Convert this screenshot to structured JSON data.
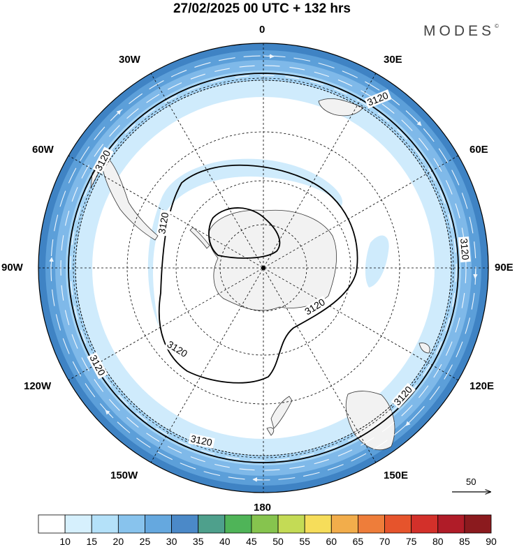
{
  "title": "27/02/2025  00 UTC  + 132 hrs",
  "brand": "MODES",
  "brand_mark": "©",
  "map": {
    "projection": "polar-stereographic-south",
    "center_point": "south-pole",
    "longitude_labels": {
      "0": "0",
      "30E": "30E",
      "60E": "60E",
      "90E": "90E",
      "120E": "120E",
      "150E": "150E",
      "180": "180",
      "150W": "150W",
      "120W": "120W",
      "90W": "90W",
      "60W": "60W",
      "30W": "30W"
    },
    "contour_label": "3120",
    "contour_level": 3120,
    "vector_reference_label": "50",
    "vector_reference_value": 50,
    "land_color": "#f2f2f2",
    "coastline_color": "#333333",
    "grid_style": "dashed"
  },
  "colorbar": {
    "ticks": [
      "10",
      "15",
      "20",
      "25",
      "30",
      "35",
      "40",
      "45",
      "50",
      "55",
      "60",
      "65",
      "70",
      "75",
      "80",
      "85",
      "90"
    ],
    "colors": [
      "#ffffff",
      "#d6f0fd",
      "#b4e1f9",
      "#88c3ed",
      "#65a8df",
      "#4b89c8",
      "#4ea08c",
      "#4fb458",
      "#86c44e",
      "#c4db55",
      "#f6dd5a",
      "#f2ad4b",
      "#ee7d3a",
      "#e6542c",
      "#d3302a",
      "#b01c28",
      "#8b1a1e"
    ]
  }
}
